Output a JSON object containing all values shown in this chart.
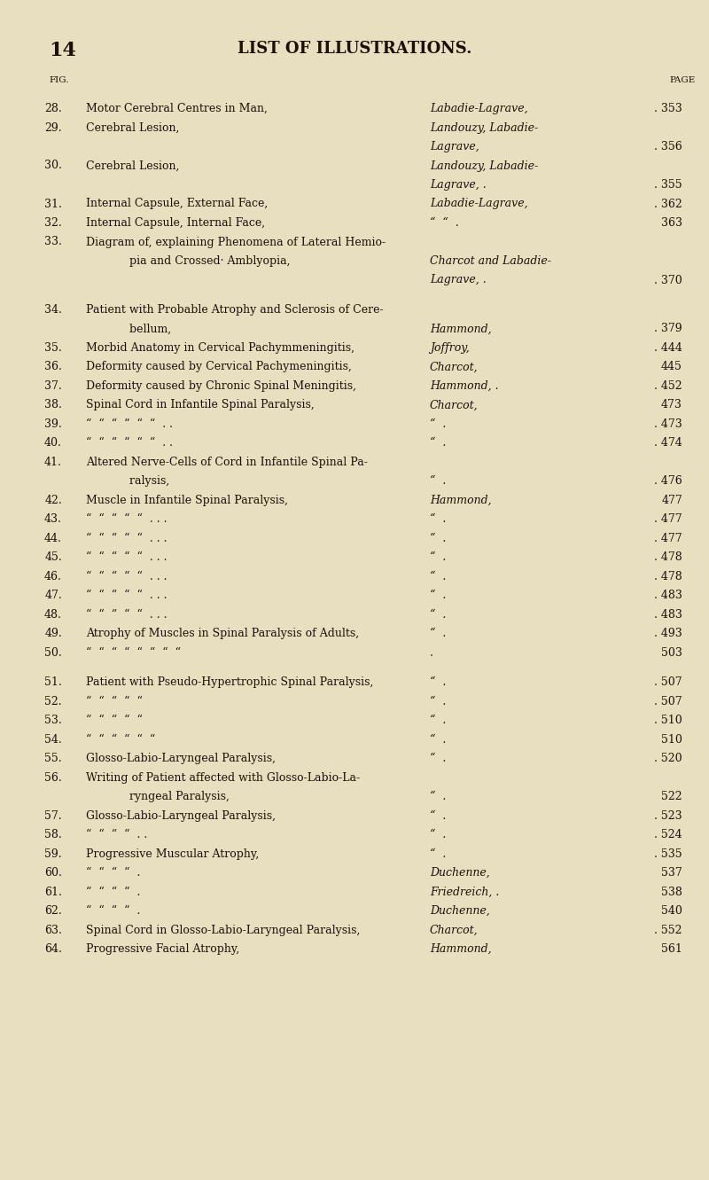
{
  "bg_color": "#e8dfc0",
  "text_color": "#1a1008",
  "page_number": "14",
  "page_title": "LIST OF ILLUSTRATIONS.",
  "col_fig": "FIG.",
  "col_page": "PAGE",
  "entries": [
    {
      "num": "28.",
      "title": "Motor Cerebral Centres in Man,",
      "dots": ". . .",
      "author": "Labadie-Lagrave,",
      "page": ". 353",
      "indent": false,
      "wrap_title": null
    },
    {
      "num": "29.",
      "title": "Cerebral Lesion,",
      "dots": ". . . . .",
      "author": "Landouzy, Labadie-",
      "page": "",
      "indent": false,
      "wrap_title": null
    },
    {
      "num": "",
      "title": "",
      "dots": "",
      "author": "Lagrave,",
      "page": ". 356",
      "indent": false,
      "wrap_title": null
    },
    {
      "num": "30.",
      "title": "Cerebral Lesion,",
      "dots": ". . . . .",
      "author": "Landouzy, Labadie-",
      "page": "",
      "indent": false,
      "wrap_title": null
    },
    {
      "num": "",
      "title": "",
      "dots": "",
      "author": "Lagrave, .",
      "page": ". 355",
      "indent": false,
      "wrap_title": null
    },
    {
      "num": "31.",
      "title": "Internal Capsule, External Face,",
      "dots": ". .",
      "author": "Labadie-Lagrave,",
      "page": ". 362",
      "indent": false,
      "wrap_title": null
    },
    {
      "num": "32.",
      "title": "Internal Capsule, Internal Face,",
      "dots": ". . .",
      "author": "“  “  .",
      "page": "363",
      "indent": false,
      "wrap_title": null
    },
    {
      "num": "33.",
      "title": "Diagram of, explaining Phenomena of Lateral Hemio-",
      "dots": "",
      "author": "",
      "page": "",
      "indent": false,
      "wrap_title": null
    },
    {
      "num": "",
      "title": "    pia and Crossed· Amblyopia,",
      "dots": ". . .",
      "author": "Charcot and Labadie-",
      "page": "",
      "indent": true,
      "wrap_title": null
    },
    {
      "num": "",
      "title": "",
      "dots": "",
      "author": "Lagrave, .",
      "page": ". 370",
      "indent": false,
      "wrap_title": null
    },
    {
      "num": "",
      "title": "",
      "dots": "",
      "author": "",
      "page": "",
      "indent": false,
      "wrap_title": null
    },
    {
      "num": "34.",
      "title": "Patient with Probable Atrophy and Sclerosis of Cere-",
      "dots": "",
      "author": "",
      "page": "",
      "indent": false,
      "wrap_title": null
    },
    {
      "num": "",
      "title": "    bellum,",
      "dots": ". . . . . .",
      "author": "Hammond,",
      "page": ". 379",
      "indent": true,
      "wrap_title": null
    },
    {
      "num": "35.",
      "title": "Morbid Anatomy in Cervical Pachymmeningitis,",
      "dots": ".",
      "author": "Joffroy,",
      "page": ". 444",
      "indent": false,
      "wrap_title": null
    },
    {
      "num": "36.",
      "title": "Deformity caused by Cervical Pachymeningitis,",
      "dots": ".",
      "author": "Charcot,",
      "page": "445",
      "indent": false,
      "wrap_title": null
    },
    {
      "num": "37.",
      "title": "Deformity caused by Chronic Spinal Meningitis,",
      "dots": "",
      "author": "Hammond, .",
      "page": ". 452",
      "indent": false,
      "wrap_title": null
    },
    {
      "num": "38.",
      "title": "Spinal Cord in Infantile Spinal Paralysis,",
      "dots": ". .",
      "author": "Charcot,",
      "page": "473",
      "indent": false,
      "wrap_title": null
    },
    {
      "num": "39.",
      "title": "“  “  “  “  “  “  . .",
      "dots": "",
      "author": "“  .",
      "page": ". 473",
      "indent": false,
      "wrap_title": null
    },
    {
      "num": "40.",
      "title": "“  “  “  “  “  “  . .",
      "dots": "",
      "author": "“  .",
      "page": ". 474",
      "indent": false,
      "wrap_title": null
    },
    {
      "num": "41.",
      "title": "Altered Nerve-Cells of Cord in Infantile Spinal Pa-",
      "dots": "",
      "author": "",
      "page": "",
      "indent": false,
      "wrap_title": null
    },
    {
      "num": "",
      "title": "    ralysis,",
      "dots": ". . . . . .",
      "author": "“  .",
      "page": ". 476",
      "indent": true,
      "wrap_title": null
    },
    {
      "num": "42.",
      "title": "Muscle in Infantile Spinal Paralysis,",
      "dots": ". .",
      "author": "Hammond,",
      "page": "477",
      "indent": false,
      "wrap_title": null
    },
    {
      "num": "43.",
      "title": "“  “  “  “  “  . . .",
      "dots": "",
      "author": "“  .",
      "page": ". 477",
      "indent": false,
      "wrap_title": null
    },
    {
      "num": "44.",
      "title": "“  “  “  “  “  . . .",
      "dots": "",
      "author": "“  .",
      "page": ". 477",
      "indent": false,
      "wrap_title": null
    },
    {
      "num": "45.",
      "title": "“  “  “  “  “  . . .",
      "dots": "",
      "author": "“  .",
      "page": ". 478",
      "indent": false,
      "wrap_title": null
    },
    {
      "num": "46.",
      "title": "“  “  “  “  “  . . .",
      "dots": "",
      "author": "“  .",
      "page": ". 478",
      "indent": false,
      "wrap_title": null
    },
    {
      "num": "47.",
      "title": "“  “  “  “  “  . . .",
      "dots": "",
      "author": "“  .",
      "page": ". 483",
      "indent": false,
      "wrap_title": null
    },
    {
      "num": "48.",
      "title": "“  “  “  “  “  . . .",
      "dots": "",
      "author": "“  .",
      "page": ". 483",
      "indent": false,
      "wrap_title": null
    },
    {
      "num": "49.",
      "title": "Atrophy of Muscles in Spinal Paralysis of Adults,",
      "dots": "",
      "author": "“  .",
      "page": ". 493",
      "indent": false,
      "wrap_title": null
    },
    {
      "num": "50.",
      "title": "“  “  “  “  “  “  “  “",
      "dots": ". .",
      "author": ".",
      "page": "503",
      "indent": false,
      "wrap_title": null
    },
    {
      "num": "",
      "title": "",
      "dots": "",
      "author": "",
      "page": "",
      "indent": false,
      "wrap_title": null
    },
    {
      "num": "51.",
      "title": "Patient with Pseudo-Hypertrophic Spinal Paralysis,",
      "dots": "",
      "author": "“  .",
      "page": ". 507",
      "indent": false,
      "wrap_title": null
    },
    {
      "num": "52.",
      "title": "“  “  “  “  “",
      "dots": ". “  .",
      "author": "“  .",
      "page": ". 507",
      "indent": false,
      "wrap_title": null
    },
    {
      "num": "53.",
      "title": "“  “  “  “  “",
      "dots": "“  “",
      "author": "“  .",
      "page": ". 510",
      "indent": false,
      "wrap_title": null
    },
    {
      "num": "54.",
      "title": "“  “  “  “  “  “",
      "dots": "",
      "author": "“  .",
      "page": "510",
      "indent": false,
      "wrap_title": null
    },
    {
      "num": "55.",
      "title": "Glosso-Labio-Laryngeal Paralysis,",
      "dots": ". . .",
      "author": "“  .",
      "page": ". 520",
      "indent": false,
      "wrap_title": null
    },
    {
      "num": "56.",
      "title": "Writing of Patient affected with Glosso-Labio-La-",
      "dots": "",
      "author": "",
      "page": "",
      "indent": false,
      "wrap_title": null
    },
    {
      "num": "",
      "title": "    ryngeal Paralysis,",
      "dots": ". . . . .",
      "author": "“  .",
      "page": "522",
      "indent": true,
      "wrap_title": null
    },
    {
      "num": "57.",
      "title": "Glosso-Labio-Laryngeal Paralysis,",
      "dots": ". .",
      "author": "“  .",
      "page": ". 523",
      "indent": false,
      "wrap_title": null
    },
    {
      "num": "58.",
      "title": "“  “  “  “  . .",
      "dots": "",
      "author": "“  .",
      "page": ". 524",
      "indent": false,
      "wrap_title": null
    },
    {
      "num": "59.",
      "title": "Progressive Muscular Atrophy,",
      "dots": ". . .",
      "author": "“  .",
      "page": ". 535",
      "indent": false,
      "wrap_title": null
    },
    {
      "num": "60.",
      "title": "“  “  “  “  .",
      "dots": ". .",
      "author": "Duchenne,",
      "page": "537",
      "indent": false,
      "wrap_title": null
    },
    {
      "num": "61.",
      "title": "“  “  “  “  .",
      "dots": ". . .",
      "author": "Friedreich, .",
      "page": "538",
      "indent": false,
      "wrap_title": null
    },
    {
      "num": "62.",
      "title": "“  “  “  “  .",
      "dots": ". .",
      "author": "Duchenne,",
      "page": "540",
      "indent": false,
      "wrap_title": null
    },
    {
      "num": "63.",
      "title": "Spinal Cord in Glosso-Labio-Laryngeal Paralysis,",
      "dots": "",
      "author": "Charcot,",
      "page": ". 552",
      "indent": false,
      "wrap_title": null
    },
    {
      "num": "64.",
      "title": "Progressive Facial Atrophy,",
      "dots": ". . .",
      "author": "Hammond,",
      "page": "561",
      "indent": false,
      "wrap_title": null
    }
  ]
}
